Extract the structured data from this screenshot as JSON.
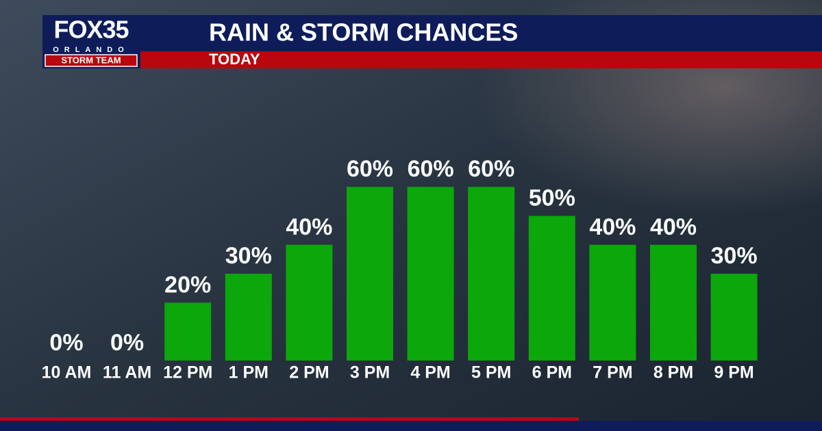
{
  "branding": {
    "logo": "FOX35",
    "city": "ORLANDO",
    "team": "STORM TEAM"
  },
  "chart_data": {
    "type": "bar",
    "title": "RAIN & STORM CHANCES",
    "subtitle": "TODAY",
    "categories": [
      "10 AM",
      "11 AM",
      "12 PM",
      "1 PM",
      "2 PM",
      "3 PM",
      "4 PM",
      "5 PM",
      "6 PM",
      "7 PM",
      "8 PM",
      "9 PM"
    ],
    "values": [
      0,
      0,
      20,
      30,
      40,
      60,
      60,
      60,
      50,
      40,
      40,
      30
    ],
    "value_labels": [
      "0%",
      "0%",
      "20%",
      "30%",
      "40%",
      "60%",
      "60%",
      "60%",
      "50%",
      "40%",
      "40%",
      "30%"
    ],
    "color": "#0ba70b"
  }
}
